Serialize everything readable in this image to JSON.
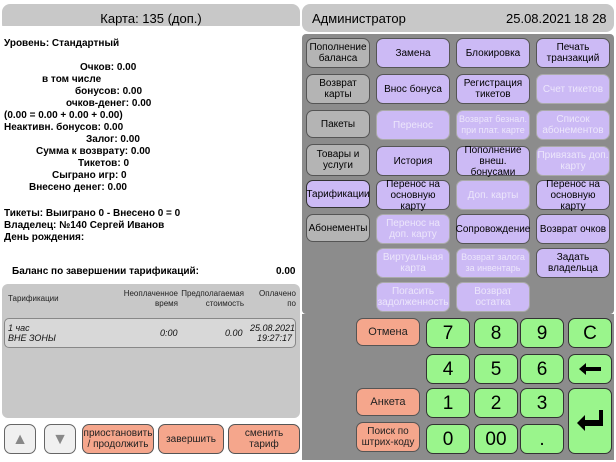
{
  "card_header": "Карта: 135 (доп.)",
  "admin_header": {
    "name": "Администратор",
    "date": "25.08.2021",
    "time": "18 28"
  },
  "info_lines": [
    "Уровень: Стандартный",
    "Очков: 0.00",
    "в том числе",
    "бонусов: 0.00",
    "очков-денег: 0.00",
    "(0.00 = 0.00 + 0.00 + 0.00)",
    "Неактивн. бонусов: 0.00",
    "Залог: 0.00",
    "Сумма к возврату: 0.00",
    "Тикетов: 0",
    "Сыграно игр: 0",
    "Внесено денег: 0.00",
    "Тикеты: Выиграно 0 - Внесено 0 = 0",
    "Владелец: №140 Сергей  Иванов",
    "День рождения:"
  ],
  "balance": {
    "label": "Баланс по завершении тарификаций:",
    "value": "0.00"
  },
  "table": {
    "headers": [
      "Тарификации",
      "Неоплаченное время",
      "Предполагаемая стоимость",
      "Оплачено по"
    ],
    "row": {
      "name1": "1 час",
      "name2": "ВНЕ ЗОНЫ",
      "unpaid": "0:00",
      "cost": "0.00",
      "paid1": "25.08.2021",
      "paid2": "19:27:17"
    }
  },
  "bottom_buttons": {
    "pause": "приостановить / продолжить",
    "finish": "завершить",
    "change": "сменить тариф"
  },
  "nav": {
    "up": "▲",
    "down": "▼"
  },
  "left_col": [
    "Пополнение баланса",
    "Возврат карты",
    "Пакеты",
    "Товары и услуги",
    "Тарификации",
    "Абонементы"
  ],
  "grid": [
    [
      "Замена",
      "Блокировка",
      "Печать транзакций"
    ],
    [
      "Внос бонуса",
      "Регистрация тикетов",
      "Счет тикетов"
    ],
    [
      "Перенос",
      "Возврат безнал. при плат. карте",
      "Список абонементов"
    ],
    [
      "История",
      "Пополнение внеш. бонусами",
      "Привязать доп. карту"
    ],
    [
      "Перенос на основную карту",
      "Доп. карты",
      "Перенос на основную карту"
    ],
    [
      "Перенос на доп. карту",
      "Сопровождение",
      "Возврат очков"
    ],
    [
      "Виртуальная карта",
      "Возврат залога за инвентарь",
      "Задать владельца"
    ],
    [
      "Погасить задолженность",
      "Возврат остатка",
      ""
    ]
  ],
  "keys": {
    "cancel": "Отмена",
    "survey": "Анкета",
    "barcode": "Поиск по штрих-коду",
    "k7": "7",
    "k8": "8",
    "k9": "9",
    "kC": "C",
    "k4": "4",
    "k5": "5",
    "k6": "6",
    "k1": "1",
    "k2": "2",
    "k3": "3",
    "k0": "0",
    "k00": "00",
    "kdot": "."
  }
}
